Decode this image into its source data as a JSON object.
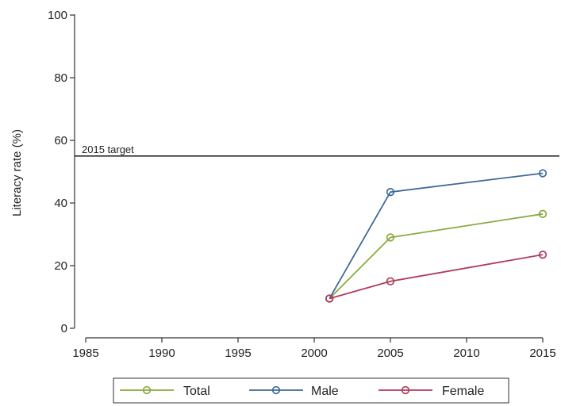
{
  "chart_data": {
    "type": "line",
    "title": "",
    "xlabel": "",
    "ylabel": "Literacy rate (%)",
    "xlim": [
      1985,
      2015
    ],
    "ylim": [
      0,
      100
    ],
    "xticks": [
      1985,
      1990,
      1995,
      2000,
      2005,
      2010,
      2015
    ],
    "yticks": [
      0,
      20,
      40,
      60,
      80,
      100
    ],
    "x": [
      2001,
      2005,
      2015
    ],
    "series": [
      {
        "name": "Total",
        "color": "#8aaa3f",
        "values": [
          9.5,
          29,
          36.5
        ]
      },
      {
        "name": "Male",
        "color": "#3e6a98",
        "values": [
          9.5,
          43.5,
          49.5
        ]
      },
      {
        "name": "Female",
        "color": "#b03c5a",
        "values": [
          9.5,
          15,
          23.5
        ]
      }
    ],
    "reference_line": {
      "label": "2015 target",
      "y": 55
    },
    "grid": false,
    "legend_position": "bottom"
  }
}
